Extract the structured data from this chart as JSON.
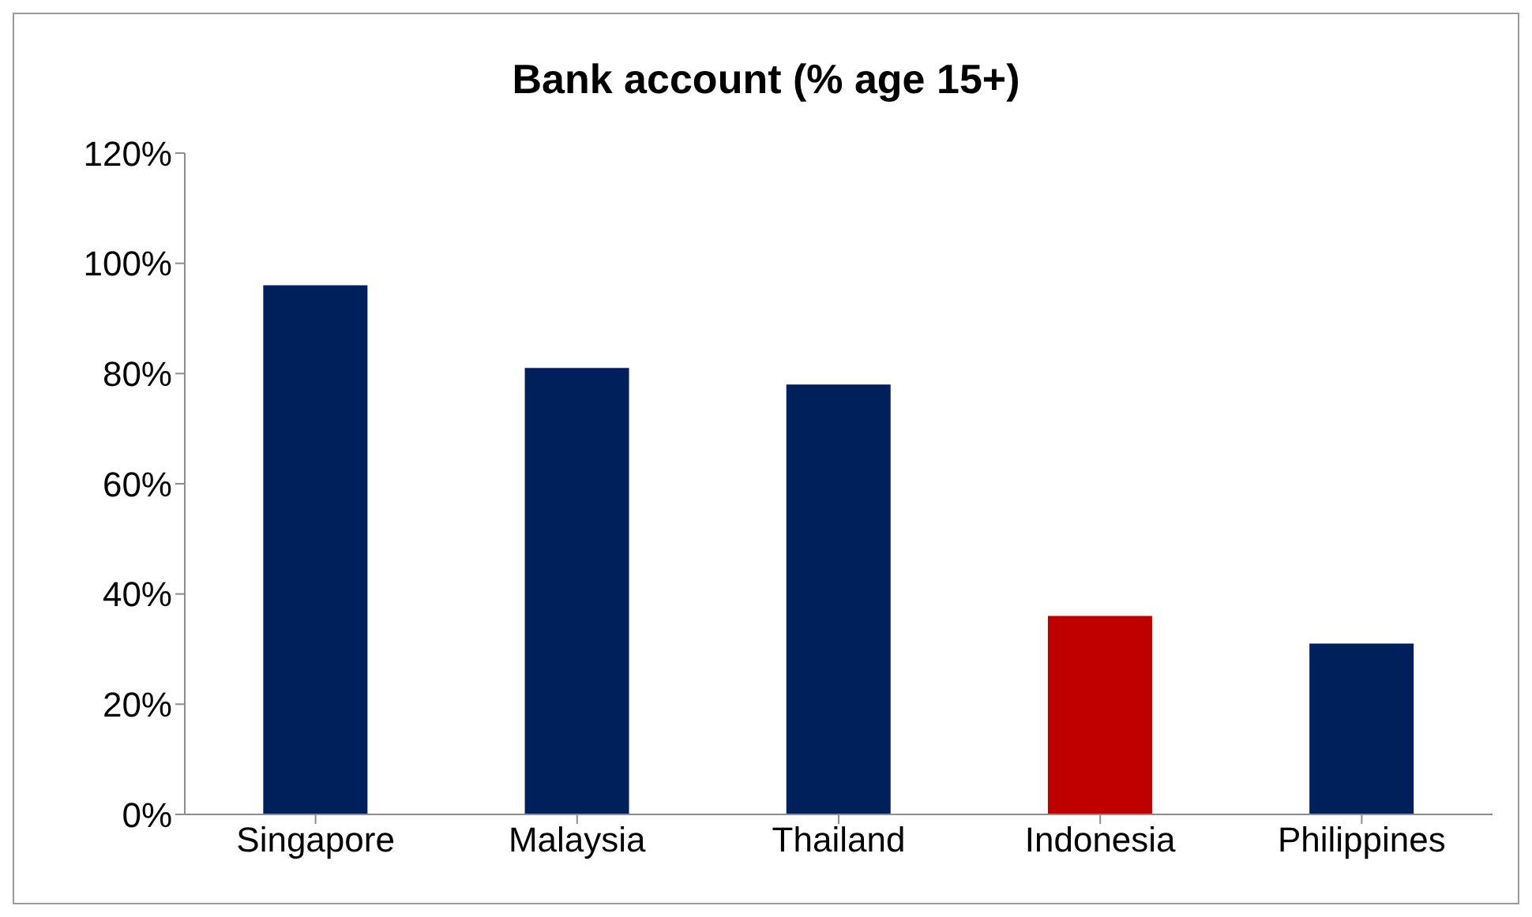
{
  "chart_data": {
    "type": "bar",
    "title": "Bank account (% age 15+)",
    "categories": [
      "Singapore",
      "Malaysia",
      "Thailand",
      "Indonesia",
      "Philippines"
    ],
    "values": [
      96,
      81,
      78,
      36,
      31
    ],
    "colors": [
      "#00205c",
      "#00205c",
      "#00205c",
      "#c00000",
      "#00205c"
    ],
    "ylim": [
      0,
      120
    ],
    "yticks": [
      {
        "value": 0,
        "label": "0%"
      },
      {
        "value": 20,
        "label": "20%"
      },
      {
        "value": 40,
        "label": "40%"
      },
      {
        "value": 60,
        "label": "60%"
      },
      {
        "value": 80,
        "label": "80%"
      },
      {
        "value": 100,
        "label": "100%"
      },
      {
        "value": 120,
        "label": "120%"
      }
    ],
    "grid": false,
    "legend": false
  }
}
